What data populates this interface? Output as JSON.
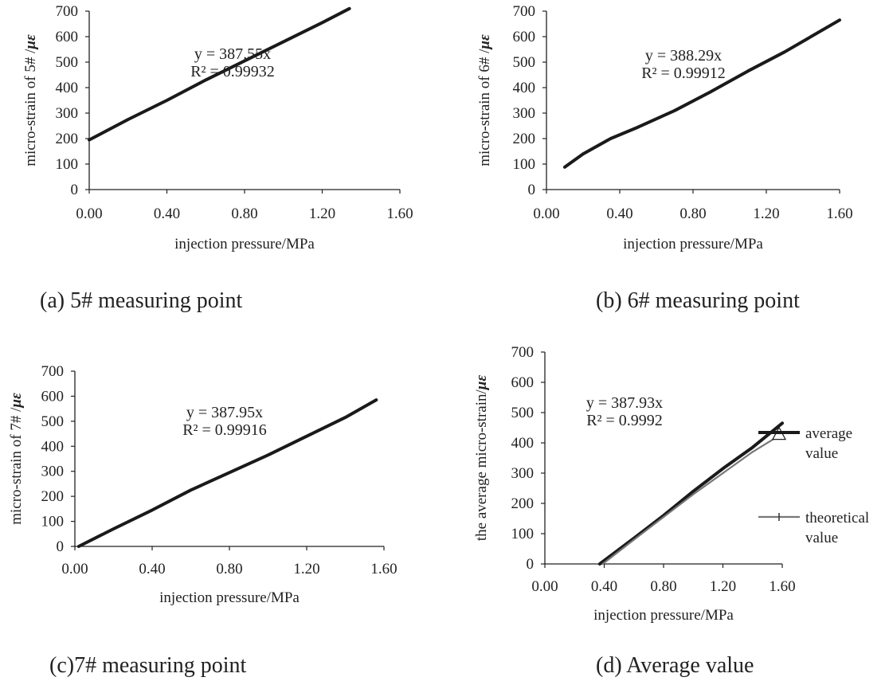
{
  "captions": {
    "a": "(a) 5# measuring point",
    "b": "(b) 6# measuring point",
    "c": "(c)7# measuring point",
    "d": "(d) Average value"
  },
  "chart_data": [
    {
      "id": "a",
      "type": "line",
      "xlabel": "injection pressure/MPa",
      "ylabel": "micro-strain of 5# /",
      "ylabel_unit": "με",
      "xlim": [
        0,
        1.6
      ],
      "ylim": [
        0,
        700
      ],
      "xticks": [
        "0.00",
        "0.40",
        "0.80",
        "1.20",
        "1.60"
      ],
      "yticks": [
        "0",
        "100",
        "200",
        "300",
        "400",
        "500",
        "600",
        "700"
      ],
      "equation": "y = 387.55x",
      "r2": "R² = 0.99932",
      "series": [
        {
          "x": [
            0,
            0.2,
            0.4,
            0.6,
            0.8,
            1.0,
            1.2,
            1.34
          ],
          "y": [
            195,
            275,
            350,
            430,
            505,
            580,
            655,
            710
          ]
        }
      ]
    },
    {
      "id": "b",
      "type": "line",
      "xlabel": "injection pressure/MPa",
      "ylabel": "micro-strain of 6# /",
      "ylabel_unit": "με",
      "xlim": [
        0,
        1.6
      ],
      "ylim": [
        0,
        700
      ],
      "xticks": [
        "0.00",
        "0.40",
        "0.80",
        "1.20",
        "1.60"
      ],
      "yticks": [
        "0",
        "100",
        "200",
        "300",
        "400",
        "500",
        "600",
        "700"
      ],
      "equation": "y = 388.29x",
      "r2": "R² = 0.99912",
      "series": [
        {
          "x": [
            0.1,
            0.2,
            0.35,
            0.5,
            0.7,
            0.9,
            1.1,
            1.3,
            1.6
          ],
          "y": [
            88,
            140,
            200,
            245,
            310,
            385,
            465,
            540,
            665
          ]
        }
      ]
    },
    {
      "id": "c",
      "type": "line",
      "xlabel": "injection pressure/MPa",
      "ylabel": "micro-strain of 7# /",
      "ylabel_unit": "με",
      "xlim": [
        0,
        1.6
      ],
      "ylim": [
        0,
        700
      ],
      "xticks": [
        "0.00",
        "0.40",
        "0.80",
        "1.20",
        "1.60"
      ],
      "yticks": [
        "0",
        "100",
        "200",
        "300",
        "400",
        "500",
        "600",
        "700"
      ],
      "equation": "y = 387.95x",
      "r2": "R² = 0.99916",
      "series": [
        {
          "x": [
            0.02,
            0.2,
            0.4,
            0.6,
            0.8,
            1.0,
            1.2,
            1.4,
            1.56
          ],
          "y": [
            0,
            70,
            145,
            225,
            295,
            365,
            440,
            515,
            585
          ]
        }
      ]
    },
    {
      "id": "d",
      "type": "line",
      "xlabel": "injection pressure/MPa",
      "ylabel": "the average micro-strain/",
      "ylabel_unit": "με",
      "xlim": [
        0,
        1.6
      ],
      "ylim": [
        0,
        700
      ],
      "xticks": [
        "0.00",
        "0.40",
        "0.80",
        "1.20",
        "1.60"
      ],
      "yticks": [
        "0",
        "100",
        "200",
        "300",
        "400",
        "500",
        "600",
        "700"
      ],
      "equation": "y = 387.93x",
      "r2": "R² = 0.9992",
      "legend_position": "right",
      "series": [
        {
          "name": "average value",
          "color": "#1a1a1a",
          "marker": "triangle",
          "x": [
            0.37,
            0.6,
            0.8,
            1.0,
            1.2,
            1.4,
            1.6
          ],
          "y": [
            0,
            85,
            160,
            240,
            315,
            385,
            465
          ]
        },
        {
          "name": "theoretical value",
          "color": "#777777",
          "marker": "plus",
          "x": [
            0.39,
            0.6,
            0.8,
            1.0,
            1.2,
            1.4,
            1.6
          ],
          "y": [
            0,
            80,
            155,
            230,
            300,
            370,
            430
          ]
        }
      ],
      "legend": [
        {
          "label_line1": "average",
          "label_line2": "value"
        },
        {
          "label_line1": "theoretical",
          "label_line2": "value"
        }
      ]
    }
  ]
}
